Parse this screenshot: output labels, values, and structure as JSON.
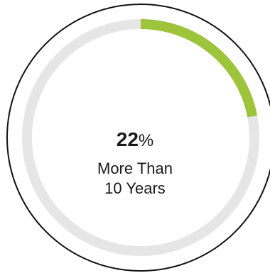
{
  "chart_data": {
    "type": "pie",
    "value": 22,
    "max": 100,
    "value_text": "22",
    "unit": "%",
    "label_lines": [
      "More Than",
      "10 Years"
    ],
    "colors": {
      "filled": "#9dc43b",
      "track": "#e6e6e6",
      "outline": "#111111"
    }
  }
}
